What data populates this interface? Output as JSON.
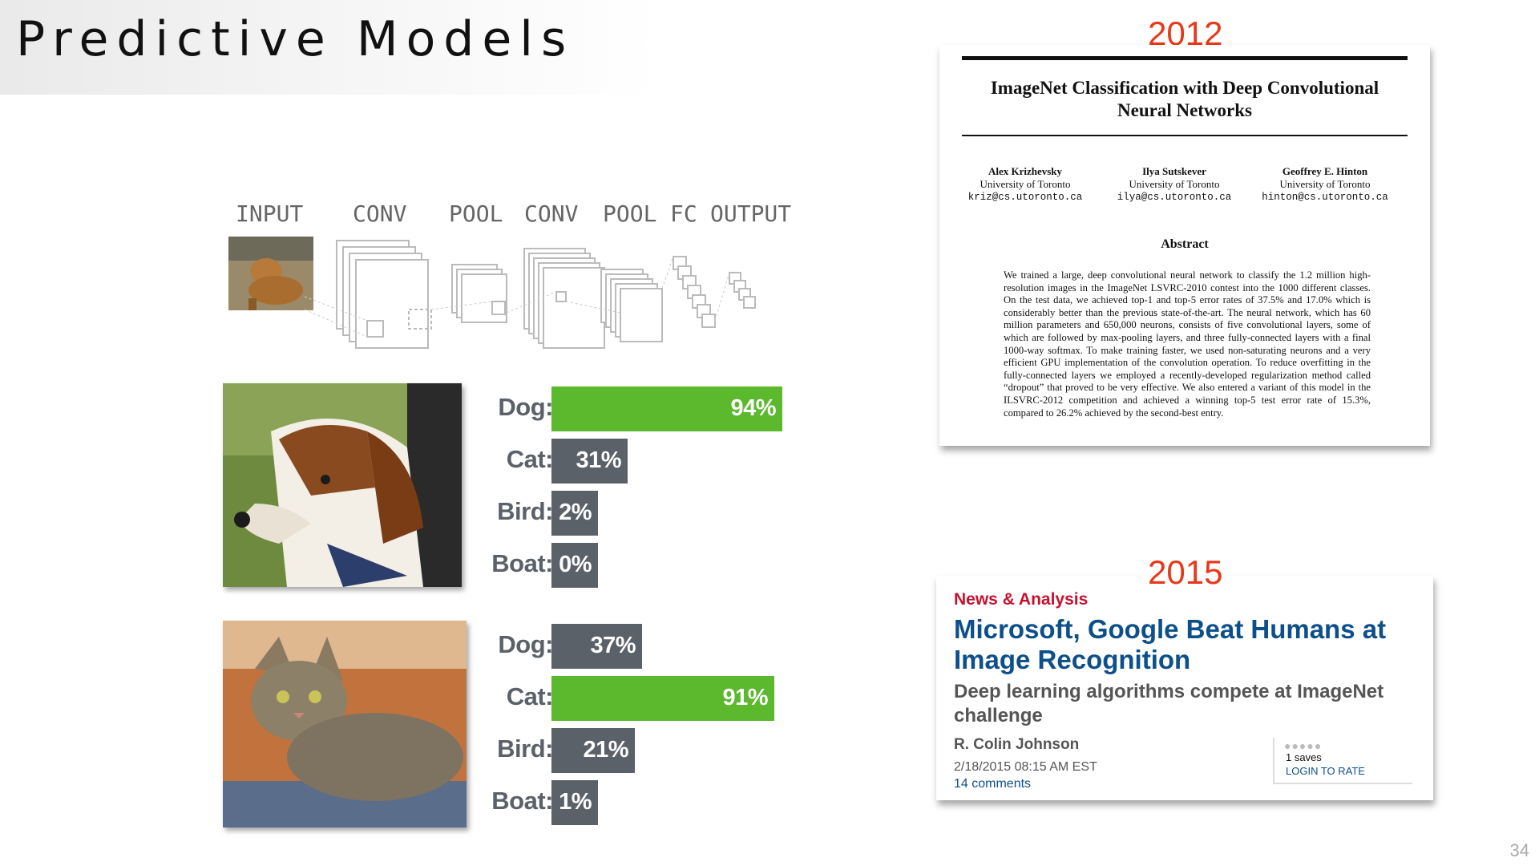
{
  "slide": {
    "title": "Predictive Models",
    "number": "34"
  },
  "cnn_diagram": {
    "labels": [
      "INPUT",
      "CONV",
      "POOL",
      "CONV",
      "POOL",
      "FC",
      "OUTPUT"
    ]
  },
  "classifiers": [
    {
      "image": "beagle-dog-photo",
      "results": [
        {
          "label": "Dog:",
          "value": 94,
          "text": "94%",
          "top": true
        },
        {
          "label": "Cat:",
          "value": 31,
          "text": "31%",
          "top": false
        },
        {
          "label": "Bird:",
          "value": 2,
          "text": "2%",
          "top": false
        },
        {
          "label": "Boat:",
          "value": 0,
          "text": "0%",
          "top": false
        }
      ]
    },
    {
      "image": "tabby-cat-photo",
      "results": [
        {
          "label": "Dog:",
          "value": 37,
          "text": "37%",
          "top": false
        },
        {
          "label": "Cat:",
          "value": 91,
          "text": "91%",
          "top": true
        },
        {
          "label": "Bird:",
          "value": 21,
          "text": "21%",
          "top": false
        },
        {
          "label": "Boat:",
          "value": 1,
          "text": "1%",
          "top": false
        }
      ]
    }
  ],
  "paper": {
    "year": "2012",
    "title_line1": "ImageNet Classification with Deep Convolutional",
    "title_line2": "Neural Networks",
    "authors": [
      {
        "name": "Alex Krizhevsky",
        "affiliation": "University of Toronto",
        "email": "kriz@cs.utoronto.ca"
      },
      {
        "name": "Ilya Sutskever",
        "affiliation": "University of Toronto",
        "email": "ilya@cs.utoronto.ca"
      },
      {
        "name": "Geoffrey E. Hinton",
        "affiliation": "University of Toronto",
        "email": "hinton@cs.utoronto.ca"
      }
    ],
    "abstract_heading": "Abstract",
    "abstract": "We trained a large, deep convolutional neural network to classify the 1.2 million high-resolution images in the ImageNet LSVRC-2010 contest into the 1000 different classes. On the test data, we achieved top-1 and top-5 error rates of 37.5% and 17.0% which is considerably better than the previous state-of-the-art. The neural network, which has 60 million parameters and 650,000 neurons, consists of five convolutional layers, some of which are followed by max-pooling layers, and three fully-connected layers with a final 1000-way softmax. To make training faster, we used non-saturating neurons and a very efficient GPU implementation of the convolution operation. To reduce overfitting in the fully-connected layers we employed a recently-developed regularization method called “dropout” that proved to be very effective. We also entered a variant of this model in the ILSVRC-2012 competition and achieved a winning top-5 test error rate of 15.3%, compared to 26.2% achieved by the second-best entry."
  },
  "news": {
    "year": "2015",
    "section": "News & Analysis",
    "headline": "Microsoft, Google Beat Humans at Image Recognition",
    "subhead": "Deep learning algorithms compete at ImageNet challenge",
    "author": "R. Colin Johnson",
    "date": "2/18/2015 08:15 AM EST",
    "comments": "14 comments",
    "saves": "1 saves",
    "login": "LOGIN TO RATE"
  },
  "colors": {
    "bar_top": "#5cb82d",
    "bar_other": "#5a6168",
    "year": "#e8381a",
    "news_link": "#0d4f8b",
    "news_section": "#c8102e"
  }
}
